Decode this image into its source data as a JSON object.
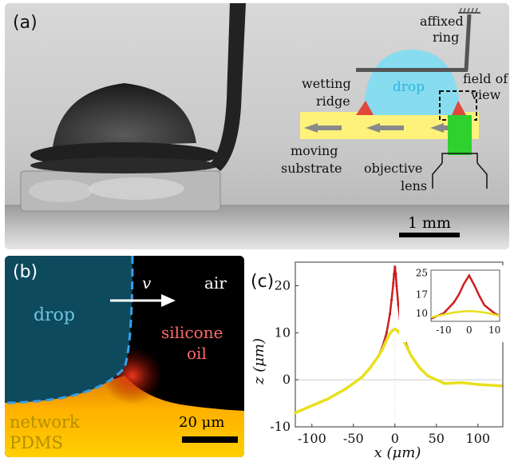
{
  "figure": {
    "panel_a": {
      "label": "(a)",
      "annotations": {
        "affixed_ring": [
          "affixed",
          "ring"
        ],
        "drop": "drop",
        "wetting_ridge": [
          "wetting",
          "ridge"
        ],
        "field_of_view": [
          "field of",
          "view"
        ],
        "moving_substrate": [
          "moving",
          "substrate"
        ],
        "objective_lens": [
          "objective",
          "lens"
        ]
      },
      "scale_bar": "1 mm",
      "colors": {
        "drop": "#87dcf0",
        "substrate": "#fff27a",
        "ridge": "#e0483a",
        "lens": "#2fd12f",
        "ring": "#555555"
      }
    },
    "panel_b": {
      "label": "(b)",
      "drop_label": "drop",
      "velocity_label": "v",
      "air_label": "air",
      "oil_label": [
        "silicone",
        "oil"
      ],
      "pdms_label": [
        "network",
        "PDMS"
      ],
      "scale_bar": "20 μm",
      "colors": {
        "drop_region": "#0d4a5e",
        "drop_text": "#6fc3e0",
        "interface": "#3a9ee8",
        "oil_text": "#ff6b6b",
        "pdms_text": "#b38f00"
      }
    },
    "panel_c": {
      "label": "(c)",
      "xlabel": "x (μm)",
      "ylabel": "z (μm)",
      "x_ticks": [
        "-100",
        "-50",
        "0",
        "50",
        "100"
      ],
      "y_ticks": [
        "-10",
        "0",
        "10",
        "20"
      ],
      "inset_x_ticks": [
        "-10",
        "0",
        "10"
      ],
      "inset_y_ticks": [
        "10",
        "17",
        "25"
      ]
    }
  },
  "chart_data": {
    "type": "scatter",
    "xlabel": "x (μm)",
    "ylabel": "z (μm)",
    "xlim": [
      -120,
      130
    ],
    "ylim": [
      -10,
      25
    ],
    "series": [
      {
        "color": "#cc1f1f",
        "x": [
          -120,
          -100,
          -80,
          -60,
          -40,
          -30,
          -20,
          -15,
          -10,
          -6,
          -4,
          -2,
          -1,
          0,
          1,
          2,
          4,
          6,
          10,
          15,
          20,
          30,
          40,
          60,
          80,
          100,
          120,
          128
        ],
        "y": [
          -7,
          -5.5,
          -4,
          -2,
          0.5,
          2.5,
          5,
          7,
          10,
          14,
          17,
          20.5,
          22.5,
          24,
          22.5,
          20,
          16,
          13,
          9.5,
          7,
          5,
          2.5,
          0.8,
          -0.8,
          -0.6,
          -1,
          -1.2,
          -1.3
        ]
      },
      {
        "color": "#e8e01c",
        "x": [
          -120,
          -100,
          -80,
          -60,
          -40,
          -30,
          -20,
          -15,
          -10,
          -6,
          -4,
          -2,
          0,
          2,
          4,
          6,
          10,
          15,
          20,
          30,
          40,
          60,
          80,
          100,
          120,
          128
        ],
        "y": [
          -7,
          -5.5,
          -4,
          -2,
          0.5,
          2.5,
          5,
          6.5,
          8.5,
          9.8,
          10.3,
          10.6,
          10.8,
          10.6,
          10.3,
          9.8,
          8.5,
          6.8,
          5,
          2.5,
          0.8,
          -0.8,
          -0.6,
          -1,
          -1.2,
          -1.3
        ]
      }
    ],
    "inset": {
      "xlim": [
        -15,
        12
      ],
      "ylim": [
        7,
        26
      ],
      "series": [
        {
          "color": "#cc1f1f",
          "x": [
            -15,
            -10,
            -6,
            -4,
            -2,
            0,
            2,
            4,
            6,
            10,
            12
          ],
          "y": [
            8,
            10,
            14,
            17,
            21,
            24,
            20.5,
            16.5,
            13,
            10,
            9
          ]
        },
        {
          "color": "#e8e01c",
          "x": [
            -15,
            -10,
            -6,
            -4,
            -2,
            0,
            2,
            4,
            6,
            10,
            12
          ],
          "y": [
            8.5,
            9.5,
            10.3,
            10.5,
            10.7,
            10.8,
            10.7,
            10.5,
            10.3,
            9.5,
            9
          ]
        }
      ]
    }
  }
}
